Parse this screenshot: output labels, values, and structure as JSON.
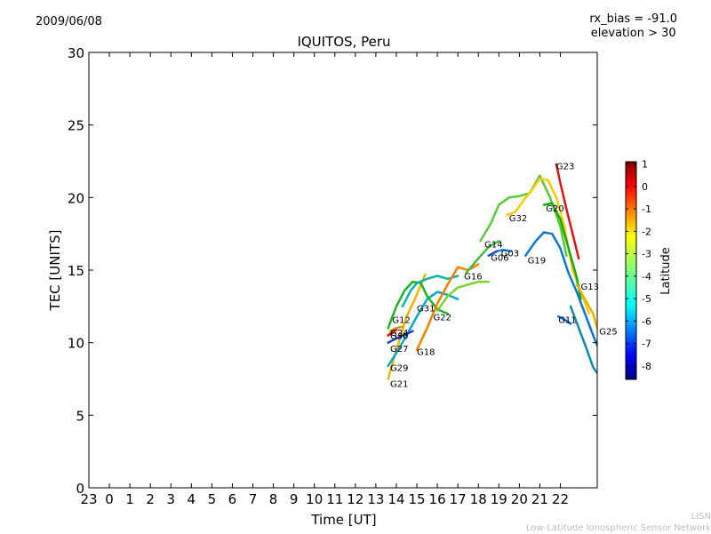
{
  "header": {
    "date": "2009/06/08",
    "rx_bias": "rx_bias = -91.0",
    "elevation": "elevation > 30"
  },
  "footer": {
    "line1": "LISN",
    "line2": "Low-Latitude Ionospheric Sensor Network"
  },
  "chart_data": {
    "type": "line",
    "title": "IQUITOS, Peru",
    "xlabel": "Time [UT]",
    "ylabel": "TEC [UNITS]",
    "xlim": [
      -1,
      23.8
    ],
    "ylim": [
      0,
      30
    ],
    "x_ticks": [
      -1,
      0,
      1,
      2,
      3,
      4,
      5,
      6,
      7,
      8,
      9,
      10,
      11,
      12,
      13,
      14,
      15,
      16,
      17,
      18,
      19,
      20,
      21,
      22
    ],
    "x_tick_labels": [
      "23",
      "0",
      "1",
      "2",
      "3",
      "4",
      "5",
      "6",
      "7",
      "8",
      "9",
      "10",
      "11",
      "12",
      "13",
      "14",
      "15",
      "16",
      "17",
      "18",
      "19",
      "20",
      "21",
      "22"
    ],
    "y_ticks": [
      0,
      5,
      10,
      15,
      20,
      25,
      30
    ],
    "colorbar": {
      "label": "Latitude",
      "range": [
        -8.6,
        1.1
      ],
      "ticks": [
        1,
        0,
        -1,
        -2,
        -3,
        -4,
        -5,
        -6,
        -7,
        -8
      ],
      "colormap": [
        "#00007f",
        "#0000ff",
        "#007fff",
        "#00ffff",
        "#7fff7f",
        "#ffff00",
        "#ff7f00",
        "#ff0000",
        "#7f0000"
      ]
    },
    "series": [
      {
        "name": "G21",
        "color": "#e6b800",
        "points": [
          [
            13.6,
            7.5
          ],
          [
            14.0,
            9.5
          ],
          [
            14.5,
            11.8
          ],
          [
            15.0,
            13.3
          ],
          [
            15.4,
            14.7
          ]
        ]
      },
      {
        "name": "G29",
        "color": "#0aa6c8",
        "points": [
          [
            13.6,
            8.4
          ],
          [
            14.0,
            9.3
          ],
          [
            14.5,
            10.5
          ],
          [
            15.0,
            11.8
          ],
          [
            15.5,
            13.0
          ],
          [
            16.0,
            13.5
          ],
          [
            16.5,
            13.3
          ],
          [
            17.0,
            13.0
          ]
        ]
      },
      {
        "name": "G27",
        "color": "#1e3cc8",
        "points": [
          [
            13.6,
            10.0
          ],
          [
            14.0,
            10.3
          ],
          [
            14.5,
            10.6
          ],
          [
            14.8,
            10.8
          ]
        ]
      },
      {
        "name": "G30",
        "color": "#e60000",
        "points": [
          [
            13.6,
            10.5
          ],
          [
            13.8,
            10.7
          ],
          [
            14.0,
            10.9
          ]
        ]
      },
      {
        "name": "G24",
        "color": "#d29600",
        "points": [
          [
            13.7,
            10.8
          ],
          [
            14.0,
            11.0
          ],
          [
            14.3,
            11.1
          ]
        ]
      },
      {
        "name": "G12",
        "color": "#1eb41e",
        "points": [
          [
            13.6,
            11.0
          ],
          [
            14.0,
            12.5
          ],
          [
            14.4,
            13.6
          ],
          [
            14.8,
            14.2
          ],
          [
            15.2,
            14.1
          ],
          [
            15.5,
            13.2
          ],
          [
            16.0,
            12.3
          ],
          [
            16.5,
            12.0
          ]
        ]
      },
      {
        "name": "G31",
        "color": "#0ab4a0",
        "points": [
          [
            14.3,
            12.5
          ],
          [
            14.7,
            13.6
          ],
          [
            15.0,
            14.1
          ],
          [
            15.5,
            14.4
          ],
          [
            16.0,
            14.6
          ],
          [
            16.5,
            14.4
          ],
          [
            17.0,
            14.6
          ]
        ]
      },
      {
        "name": "G18",
        "color": "#f08200",
        "points": [
          [
            15.0,
            9.5
          ],
          [
            15.5,
            11.0
          ],
          [
            16.0,
            12.7
          ],
          [
            16.5,
            14.0
          ],
          [
            17.0,
            15.2
          ],
          [
            17.5,
            15.0
          ],
          [
            18.0,
            15.4
          ]
        ]
      },
      {
        "name": "G22",
        "color": "#78d232",
        "points": [
          [
            16.0,
            12.2
          ],
          [
            16.5,
            13.2
          ],
          [
            17.0,
            13.8
          ],
          [
            17.5,
            14.0
          ],
          [
            18.0,
            14.2
          ],
          [
            18.5,
            14.2
          ]
        ]
      },
      {
        "name": "G16",
        "color": "#3cbe3c",
        "points": [
          [
            17.4,
            14.8
          ],
          [
            18.0,
            15.8
          ],
          [
            18.5,
            16.6
          ],
          [
            19.0,
            17.0
          ]
        ]
      },
      {
        "name": "G14",
        "color": "#5ac83c",
        "points": [
          [
            18.1,
            17.0
          ],
          [
            18.6,
            18.2
          ],
          [
            19.0,
            19.5
          ],
          [
            19.5,
            20.0
          ],
          [
            20.0,
            20.1
          ],
          [
            20.5,
            20.3
          ],
          [
            21.0,
            21.5
          ],
          [
            21.5,
            20.0
          ],
          [
            22.0,
            18.0
          ],
          [
            22.3,
            16.0
          ]
        ]
      },
      {
        "name": "G32",
        "color": "#ffc800",
        "points": [
          [
            19.4,
            18.8
          ],
          [
            19.8,
            19.0
          ],
          [
            20.2,
            19.8
          ],
          [
            20.6,
            20.5
          ],
          [
            21.0,
            21.3
          ],
          [
            21.4,
            21.2
          ],
          [
            21.8,
            20.0
          ],
          [
            22.2,
            18.0
          ],
          [
            22.6,
            15.0
          ],
          [
            23.0,
            13.5
          ],
          [
            23.4,
            12.0
          ]
        ]
      },
      {
        "name": "G23",
        "color": "#dc1414",
        "points": [
          [
            21.8,
            22.3
          ],
          [
            22.0,
            21.0
          ],
          [
            22.3,
            19.2
          ],
          [
            22.6,
            17.5
          ],
          [
            22.9,
            15.8
          ]
        ]
      },
      {
        "name": "G20",
        "color": "#14aa14",
        "points": [
          [
            21.2,
            19.5
          ],
          [
            21.6,
            19.6
          ],
          [
            22.0,
            18.5
          ],
          [
            22.4,
            16.5
          ],
          [
            22.8,
            14.5
          ],
          [
            23.0,
            13.0
          ]
        ]
      },
      {
        "name": "G13",
        "color": "#e6b400",
        "points": [
          [
            22.8,
            14.0
          ],
          [
            23.2,
            13.0
          ],
          [
            23.6,
            12.0
          ],
          [
            23.8,
            11.0
          ]
        ]
      },
      {
        "name": "G11",
        "color": "#0a64dc",
        "points": [
          [
            21.9,
            11.8
          ],
          [
            22.2,
            11.6
          ],
          [
            22.5,
            11.3
          ]
        ]
      },
      {
        "name": "G25",
        "color": "#0a8caa",
        "points": [
          [
            22.5,
            12.5
          ],
          [
            22.9,
            11.0
          ],
          [
            23.3,
            9.5
          ],
          [
            23.6,
            8.3
          ],
          [
            23.8,
            7.9
          ]
        ]
      },
      {
        "name": "G03",
        "color": "#0a8cdc",
        "points": [
          [
            18.9,
            16.3
          ],
          [
            19.2,
            16.4
          ],
          [
            19.6,
            16.3
          ]
        ]
      },
      {
        "name": "G06",
        "color": "#0a46c8",
        "points": [
          [
            18.5,
            16.0
          ],
          [
            18.9,
            16.3
          ]
        ]
      },
      {
        "name": "G19",
        "color": "#0a78d2",
        "points": [
          [
            20.3,
            16.0
          ],
          [
            20.8,
            17.0
          ],
          [
            21.2,
            17.6
          ],
          [
            21.6,
            17.5
          ],
          [
            22.0,
            16.5
          ],
          [
            22.4,
            14.8
          ],
          [
            22.8,
            13.5
          ],
          [
            23.2,
            12.0
          ],
          [
            23.6,
            10.5
          ],
          [
            23.8,
            9.8
          ]
        ]
      }
    ],
    "labels": [
      {
        "text": "G21",
        "x": 13.7,
        "y": 7.2
      },
      {
        "text": "G29",
        "x": 13.7,
        "y": 8.3
      },
      {
        "text": "G27",
        "x": 13.7,
        "y": 9.6
      },
      {
        "text": "G30",
        "x": 13.7,
        "y": 10.5
      },
      {
        "text": "G24",
        "x": 13.7,
        "y": 10.7
      },
      {
        "text": "G12",
        "x": 13.8,
        "y": 11.6
      },
      {
        "text": "G31",
        "x": 15.0,
        "y": 12.4
      },
      {
        "text": "G18",
        "x": 15.0,
        "y": 9.4
      },
      {
        "text": "G22",
        "x": 15.8,
        "y": 11.8
      },
      {
        "text": "G16",
        "x": 17.3,
        "y": 14.6
      },
      {
        "text": "G14",
        "x": 18.3,
        "y": 16.8
      },
      {
        "text": "G06",
        "x": 18.6,
        "y": 15.9
      },
      {
        "text": "G03",
        "x": 19.1,
        "y": 16.2
      },
      {
        "text": "G32",
        "x": 19.5,
        "y": 18.6
      },
      {
        "text": "G19",
        "x": 20.4,
        "y": 15.7
      },
      {
        "text": "G20",
        "x": 21.3,
        "y": 19.3
      },
      {
        "text": "G23",
        "x": 21.8,
        "y": 22.2
      },
      {
        "text": "G13",
        "x": 23.0,
        "y": 13.9
      },
      {
        "text": "G11",
        "x": 21.9,
        "y": 11.6
      },
      {
        "text": "G25",
        "x": 23.9,
        "y": 10.8
      }
    ]
  }
}
